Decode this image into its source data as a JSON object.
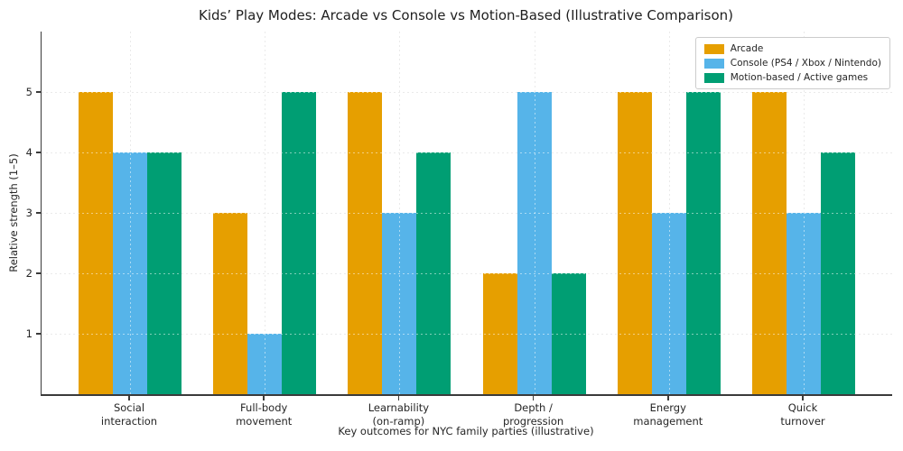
{
  "chart_data": {
    "type": "bar",
    "title": "Kids’ Play Modes: Arcade vs Console vs Motion-Based (Illustrative Comparison)",
    "xlabel": "Key outcomes for NYC family parties (illustrative)",
    "ylabel": "Relative strength (1–5)",
    "categories": [
      "Social\ninteraction",
      "Full-body\nmovement",
      "Learnability\n(on-ramp)",
      "Depth /\nprogression",
      "Energy\nmanagement",
      "Quick\nturnover"
    ],
    "series": [
      {
        "name": "Arcade",
        "color": "#E69F00",
        "values": [
          5,
          3,
          5,
          2,
          5,
          5
        ]
      },
      {
        "name": "Console (PS4 / Xbox / Nintendo)",
        "color": "#56B4E9",
        "values": [
          4,
          1,
          3,
          5,
          3,
          3
        ]
      },
      {
        "name": "Motion-based / Active games",
        "color": "#009E73",
        "values": [
          4,
          5,
          4,
          2,
          5,
          4
        ]
      }
    ],
    "yticks": [
      1,
      2,
      3,
      4,
      5
    ],
    "ylim": [
      0,
      6
    ],
    "grid": true,
    "legend_position": "upper right"
  }
}
